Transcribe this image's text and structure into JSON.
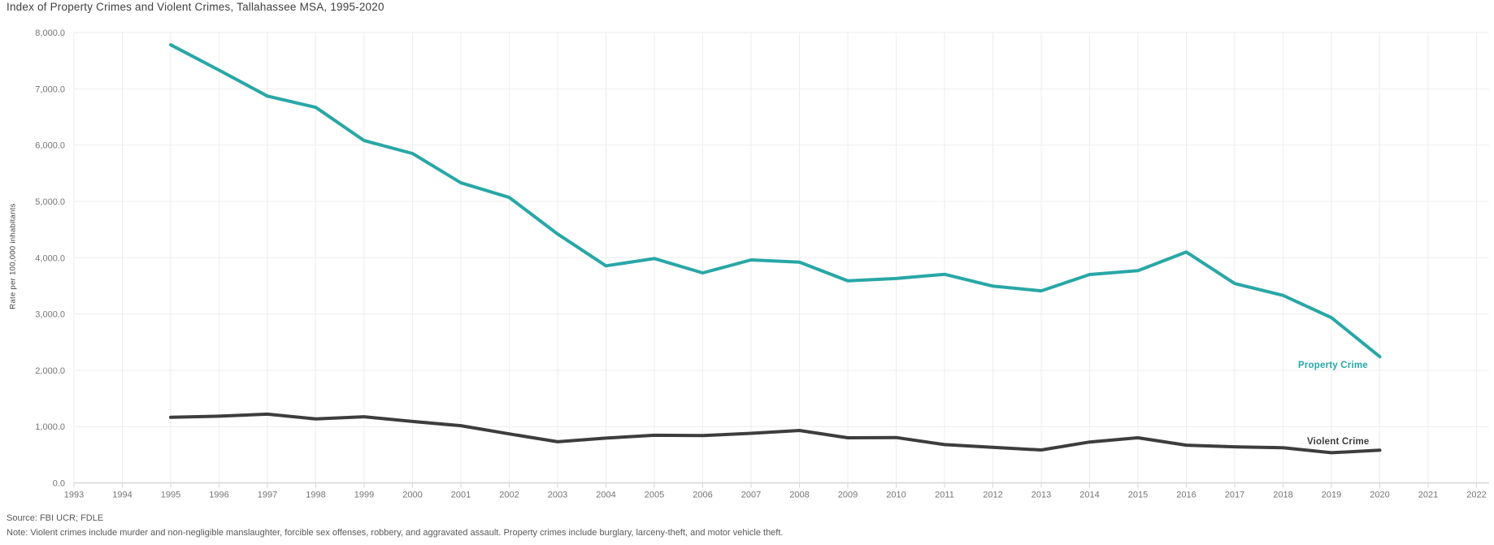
{
  "title": "Index of Property Crimes and Violent Crimes, Tallahassee MSA, 1995-2020",
  "y_axis_title": "Rate per 100,000 inhabitants",
  "source": "Source: FBI UCR; FDLE",
  "note": "Note: Violent crimes include murder and non-negligible manslaughter, forcible sex offenses, robbery, and aggravated assault. Property crimes include burglary, larceny-theft, and motor vehicle theft.",
  "colors": {
    "property_crime": "#28a7a6",
    "violent_crime": "#3d3d3d",
    "gridline": "#ededed",
    "axis_line": "#d6d6d6",
    "tick_text": "#757575",
    "title_text": "#3f3f3f"
  },
  "chart_data": {
    "type": "line",
    "title": "Index of Property Crimes and Violent Crimes, Tallahassee MSA, 1995-2020",
    "xlabel": "",
    "ylabel": "Rate per 100,000 inhabitants",
    "grid": true,
    "legend_position": "end-of-line labels",
    "ylim": [
      0,
      8000
    ],
    "y_ticks": [
      {
        "value": 0,
        "label": "0.0"
      },
      {
        "value": 1000,
        "label": "1,000.0"
      },
      {
        "value": 2000,
        "label": "2,000.0"
      },
      {
        "value": 3000,
        "label": "3,000.0"
      },
      {
        "value": 4000,
        "label": "4,000.0"
      },
      {
        "value": 5000,
        "label": "5,000.0"
      },
      {
        "value": 6000,
        "label": "6,000.0"
      },
      {
        "value": 7000,
        "label": "7,000.0"
      },
      {
        "value": 8000,
        "label": "8,000.0"
      }
    ],
    "x_ticks": [
      "1993",
      "1994",
      "1995",
      "1996",
      "1997",
      "1998",
      "1999",
      "2000",
      "2001",
      "2002",
      "2003",
      "2004",
      "2005",
      "2006",
      "2007",
      "2008",
      "2009",
      "2010",
      "2011",
      "2012",
      "2013",
      "2014",
      "2015",
      "2016",
      "2017",
      "2018",
      "2019",
      "2020",
      "2021",
      "2022"
    ],
    "x_range": [
      1993,
      2022
    ],
    "series": [
      {
        "name": "Property Crime",
        "color_key": "property_crime",
        "x": [
          1995,
          1996,
          1997,
          1998,
          1999,
          2000,
          2001,
          2002,
          2003,
          2004,
          2005,
          2006,
          2007,
          2008,
          2009,
          2010,
          2011,
          2012,
          2013,
          2014,
          2015,
          2016,
          2017,
          2018,
          2019,
          2020
        ],
        "values": [
          7780,
          7330,
          6870,
          6670,
          6080,
          5850,
          5330,
          5070,
          4420,
          3855,
          3985,
          3730,
          3960,
          3920,
          3590,
          3630,
          3705,
          3495,
          3410,
          3700,
          3770,
          4100,
          3540,
          3330,
          2935,
          2240
        ]
      },
      {
        "name": "Violent Crime",
        "color_key": "violent_crime",
        "x": [
          1995,
          1996,
          1997,
          1998,
          1999,
          2000,
          2001,
          2002,
          2003,
          2004,
          2005,
          2006,
          2007,
          2008,
          2009,
          2010,
          2011,
          2012,
          2013,
          2014,
          2015,
          2016,
          2017,
          2018,
          2019,
          2020
        ],
        "values": [
          1165,
          1185,
          1220,
          1135,
          1175,
          1090,
          1015,
          870,
          730,
          795,
          845,
          840,
          880,
          930,
          800,
          805,
          680,
          630,
          585,
          725,
          800,
          670,
          640,
          625,
          535,
          580
        ]
      }
    ]
  }
}
